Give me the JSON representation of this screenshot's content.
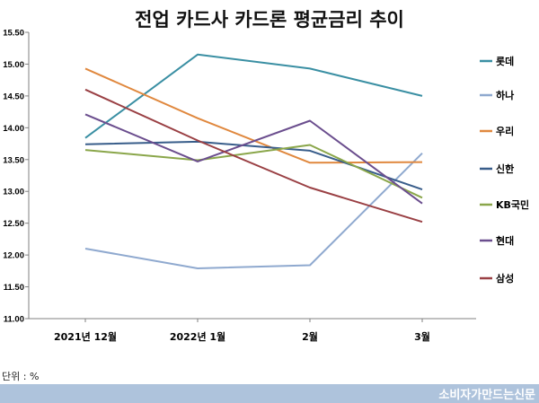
{
  "chart_data": {
    "type": "line",
    "title": "전업 카드사 카드론 평균금리 추이",
    "categories": [
      "2021년 12월",
      "2022년 1월",
      "2월",
      "3월"
    ],
    "ylim": [
      11.0,
      15.5
    ],
    "yticks": [
      "11.00",
      "11.50",
      "12.00",
      "12.50",
      "13.00",
      "13.50",
      "14.00",
      "14.50",
      "15.00",
      "15.50"
    ],
    "grid": false,
    "legend": "right",
    "series": [
      {
        "name": "롯데",
        "color": "#3a8fa3",
        "values": [
          13.84,
          15.15,
          14.93,
          14.5
        ]
      },
      {
        "name": "하나",
        "color": "#8fa9cf",
        "values": [
          12.1,
          11.79,
          11.84,
          13.6
        ]
      },
      {
        "name": "우리",
        "color": "#e0883e",
        "values": [
          14.93,
          14.15,
          13.45,
          13.46
        ]
      },
      {
        "name": "신한",
        "color": "#385d8a",
        "values": [
          13.74,
          13.78,
          13.64,
          13.03
        ]
      },
      {
        "name": "KB국민",
        "color": "#8aa64a",
        "values": [
          13.65,
          13.49,
          13.73,
          12.9
        ]
      },
      {
        "name": "현대",
        "color": "#6b4e8e",
        "values": [
          14.21,
          13.47,
          14.11,
          12.81
        ]
      },
      {
        "name": "삼성",
        "color": "#9a4044",
        "values": [
          14.6,
          13.8,
          13.06,
          12.52
        ]
      }
    ]
  },
  "unit_note": "단위 : %",
  "footer": {
    "source": "소비자가만드는신문"
  }
}
